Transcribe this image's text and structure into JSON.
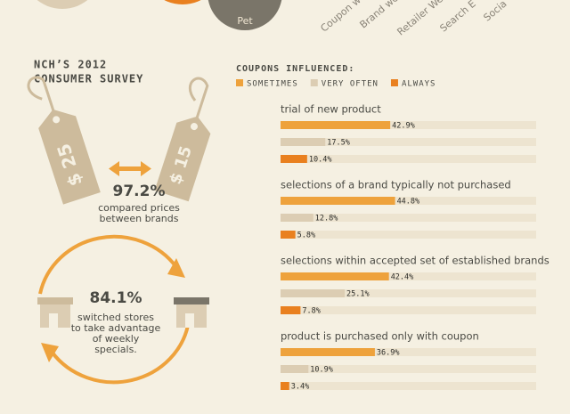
{
  "top": {
    "circle_label": "Pet",
    "rotated_labels": [
      "Coupon w",
      "Brand we",
      "Retailer We",
      "Search E",
      "Socia"
    ]
  },
  "survey": {
    "title": [
      "NCH’S 2012",
      "CONSUMER SURVEY"
    ],
    "tags": [
      "$ 25",
      "$ 15"
    ],
    "prices_stat": "97.2%",
    "prices_text": [
      "compared prices",
      "between brands"
    ],
    "stores_stat": "84.1%",
    "stores_text": [
      "switched stores",
      "to take advantage",
      "of weekly",
      "specials."
    ]
  },
  "chart_data": {
    "type": "bar",
    "title": "COUPONS INFLUENCED:",
    "categories": [
      "trial of new product",
      "selections of a brand typically not purchased",
      "selections within accepted set of established brands",
      "product is purchased only with coupon"
    ],
    "series": [
      {
        "name": "SOMETIMES",
        "color": "#eea23c",
        "values": [
          42.9,
          44.8,
          42.4,
          36.9
        ],
        "value_labels": [
          "42.9%",
          "44.8%",
          "42.4%",
          "36.9%"
        ]
      },
      {
        "name": "VERY OFTEN",
        "color": "#dccdb3",
        "values": [
          17.5,
          12.8,
          25.1,
          10.9
        ],
        "value_labels": [
          "17.5%",
          "12.8%",
          "25.1%",
          "10.9%"
        ]
      },
      {
        "name": "ALWAYS",
        "color": "#e9801f",
        "values": [
          10.4,
          5.8,
          7.8,
          3.4
        ],
        "value_labels": [
          "10.4%",
          "5.8%",
          "7.8%",
          "3.4%"
        ]
      }
    ],
    "xlim": [
      0,
      100
    ]
  }
}
